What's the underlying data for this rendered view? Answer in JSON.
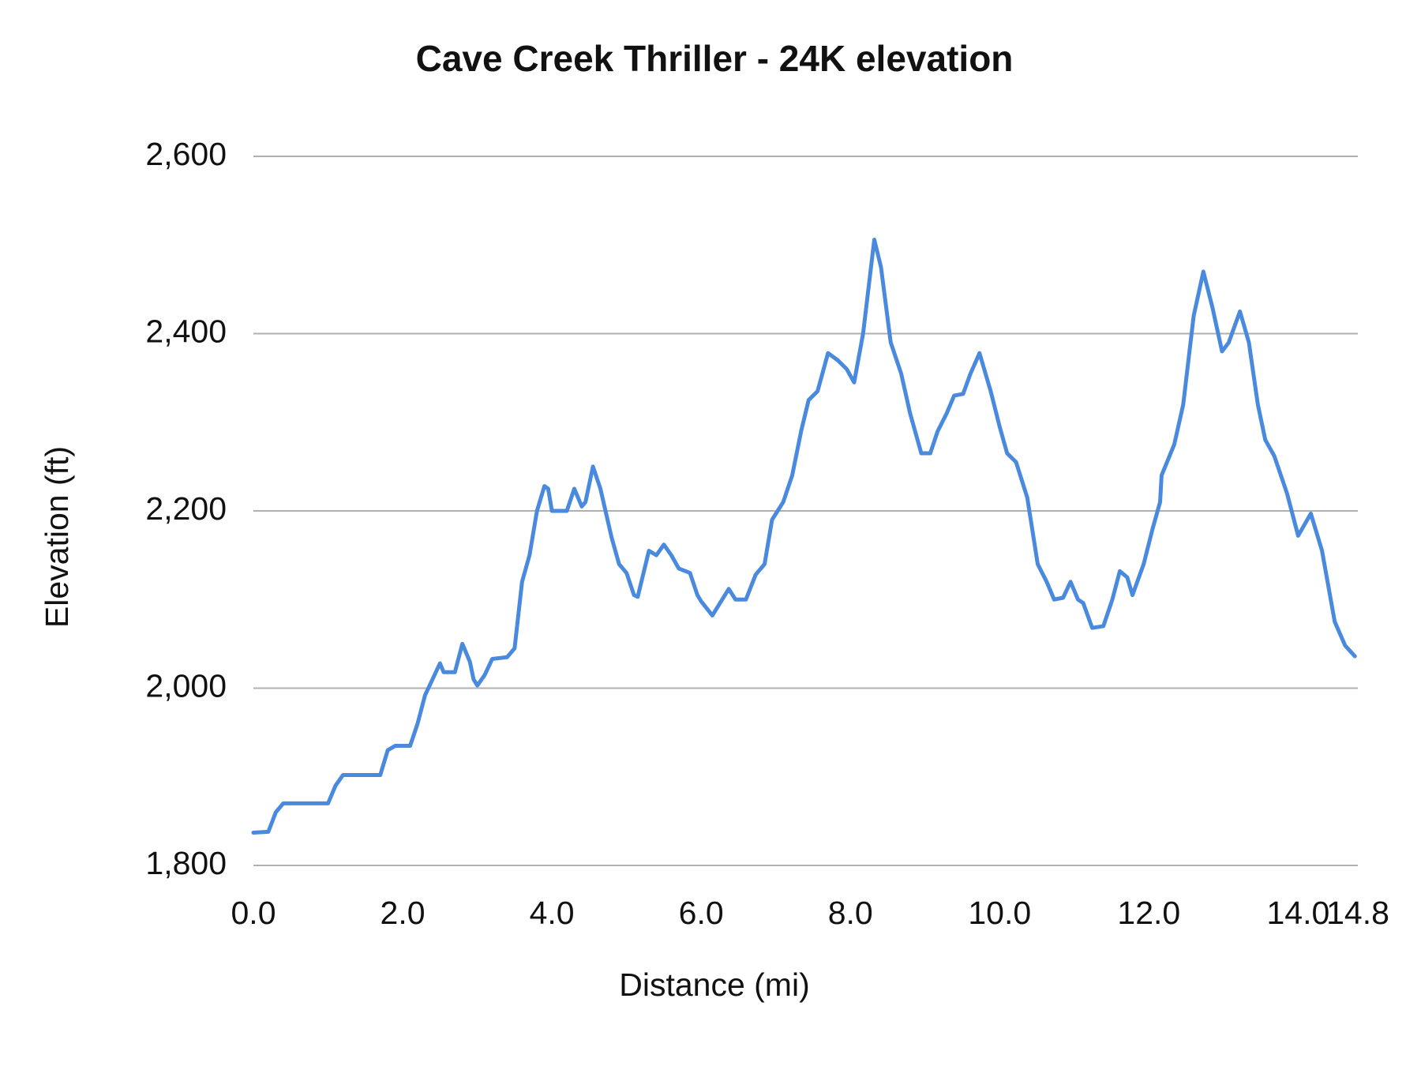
{
  "chart_data": {
    "type": "line",
    "title": "Cave Creek Thriller - 24K elevation",
    "x_label": "Distance (mi)",
    "y_label": "Elevation (ft)",
    "x": [
      0,
      0.2,
      0.3,
      0.4,
      1.0,
      1.1,
      1.2,
      1.7,
      1.8,
      1.9,
      2.1,
      2.2,
      2.3,
      2.4,
      2.5,
      2.55,
      2.7,
      2.8,
      2.9,
      2.95,
      3.0,
      3.1,
      3.2,
      3.4,
      3.5,
      3.6,
      3.7,
      3.8,
      3.9,
      3.95,
      4.0,
      4.2,
      4.3,
      4.4,
      4.45,
      4.55,
      4.65,
      4.8,
      4.9,
      5.0,
      5.1,
      5.15,
      5.3,
      5.4,
      5.5,
      5.6,
      5.7,
      5.85,
      5.95,
      6.0,
      6.15,
      6.37,
      6.46,
      6.6,
      6.73,
      6.85,
      6.95,
      7.1,
      7.22,
      7.34,
      7.44,
      7.56,
      7.7,
      7.83,
      7.95,
      8.05,
      8.17,
      8.32,
      8.41,
      8.54,
      8.68,
      8.8,
      8.95,
      9.07,
      9.17,
      9.29,
      9.39,
      9.51,
      9.61,
      9.73,
      9.88,
      10.0,
      10.1,
      10.22,
      10.37,
      10.51,
      10.63,
      10.73,
      10.85,
      10.95,
      11.05,
      11.12,
      11.24,
      11.39,
      11.51,
      11.61,
      11.71,
      11.78,
      11.93,
      12.05,
      12.15,
      12.17,
      12.34,
      12.46,
      12.6,
      12.73,
      12.85,
      12.98,
      13.07,
      13.22,
      13.34,
      13.46,
      13.56,
      13.68,
      13.85,
      14.0,
      14.17,
      14.32,
      14.49,
      14.63,
      14.76
    ],
    "series": [
      {
        "name": "Elevation",
        "color": "#4a8ade",
        "values": [
          1837,
          1838,
          1860,
          1870,
          1870,
          1890,
          1902,
          1902,
          1930,
          1935,
          1935,
          1960,
          1992,
          2010,
          2028,
          2018,
          2018,
          2050,
          2030,
          2010,
          2003,
          2015,
          2033,
          2035,
          2045,
          2120,
          2150,
          2200,
          2228,
          2225,
          2200,
          2200,
          2225,
          2205,
          2210,
          2250,
          2225,
          2170,
          2140,
          2130,
          2105,
          2103,
          2155,
          2150,
          2162,
          2150,
          2135,
          2130,
          2105,
          2098,
          2082,
          2112,
          2100,
          2100,
          2128,
          2140,
          2190,
          2210,
          2240,
          2290,
          2325,
          2335,
          2378,
          2370,
          2360,
          2345,
          2400,
          2506,
          2475,
          2390,
          2355,
          2310,
          2265,
          2265,
          2290,
          2310,
          2330,
          2332,
          2355,
          2378,
          2335,
          2295,
          2265,
          2255,
          2215,
          2140,
          2120,
          2100,
          2102,
          2120,
          2100,
          2096,
          2068,
          2070,
          2100,
          2132,
          2125,
          2105,
          2140,
          2180,
          2210,
          2240,
          2275,
          2320,
          2420,
          2470,
          2430,
          2380,
          2390,
          2425,
          2390,
          2320,
          2280,
          2262,
          2220,
          2172,
          2197,
          2155,
          2075,
          2048,
          2036
        ]
      }
    ],
    "xlim": [
      0,
      14.8
    ],
    "xticks": [
      {
        "value": 0,
        "label": "0.0"
      },
      {
        "value": 2,
        "label": "2.0"
      },
      {
        "value": 4,
        "label": "4.0"
      },
      {
        "value": 6,
        "label": "6.0"
      },
      {
        "value": 8,
        "label": "8.0"
      },
      {
        "value": 10,
        "label": "10.0"
      },
      {
        "value": 12,
        "label": "12.0"
      },
      {
        "value": 14,
        "label": "14.0"
      },
      {
        "value": 14.8,
        "label": "14.8"
      }
    ],
    "ylim": [
      1800,
      2600
    ],
    "yticks": [
      {
        "value": 1800,
        "label": "1,800"
      },
      {
        "value": 2000,
        "label": "2,000"
      },
      {
        "value": 2200,
        "label": "2,200"
      },
      {
        "value": 2400,
        "label": "2,400"
      },
      {
        "value": 2600,
        "label": "2,600"
      }
    ],
    "grid": true
  }
}
